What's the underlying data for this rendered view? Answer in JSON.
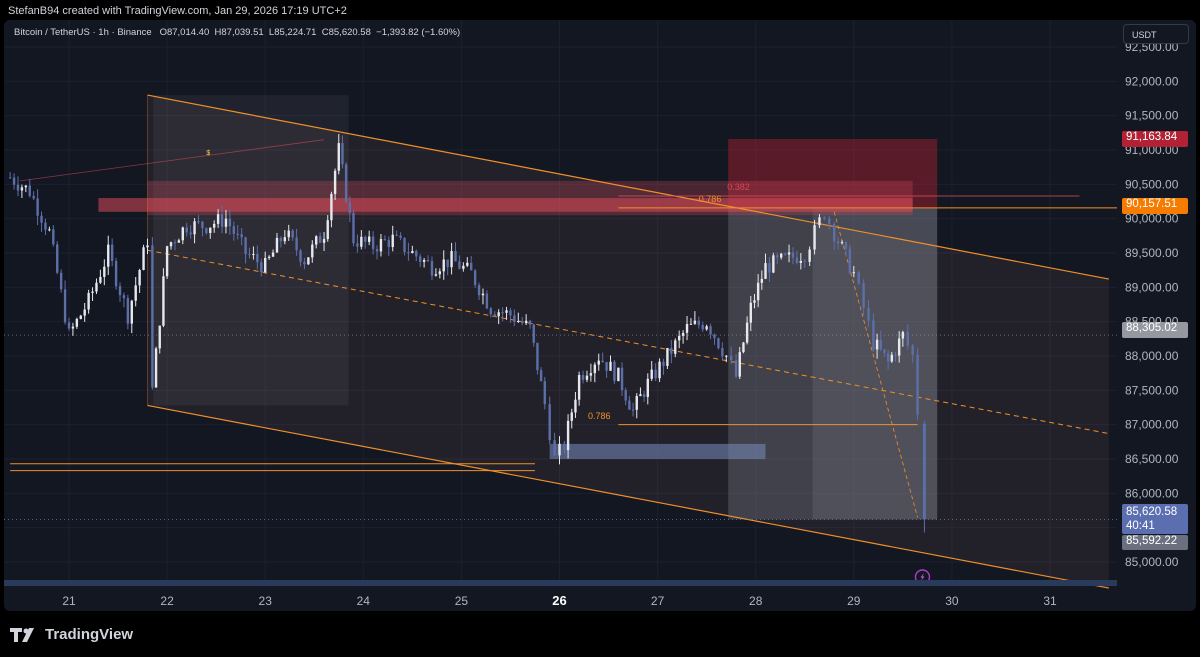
{
  "header": {
    "credit": "StefanB94 created with TradingView.com, Jan 29, 2026 17:19 UTC+2"
  },
  "legend": {
    "symbol": "Bitcoin / TetherUS · 1h · Binance",
    "open": "O87,014.40",
    "high": "H87,039.51",
    "low": "L85,224.71",
    "close": "C85,620.58",
    "change": "−1,393.82 (−1.60%)"
  },
  "currency": "USDT",
  "price_tags": {
    "red": "91,163.84",
    "orange": "90,157.51",
    "gray": "88,305.02",
    "blue_price": "85,620.58",
    "blue_countdown": "40:41",
    "low": "85,592.22"
  },
  "annotations": {
    "fib_top_a": "0.382",
    "fib_top_b": "0.786",
    "fib_bottom": "0.786",
    "dollar": "$"
  },
  "footer": {
    "brand": "TradingView"
  },
  "colors": {
    "background": "#131722",
    "up_candle": "#e6e8ee",
    "down_candle": "#5c6fa8",
    "channel": "#f0902a",
    "supply_zone": "#d94a5a",
    "stop_zone": "#b22234",
    "target_zone": "#9598a1",
    "tag_red": "#b22234",
    "tag_orange": "#f57c00",
    "tag_gray": "#9598a1",
    "tag_blue": "#5b6fb0",
    "tag_low": "#6b7080"
  },
  "chart_data": {
    "type": "candlestick",
    "title": "Bitcoin / TetherUS · 1h · Binance",
    "xlabel": "",
    "ylabel": "",
    "ylim": [
      84500,
      92700
    ],
    "xlim": [
      20.4,
      31.6
    ],
    "y_ticks": [
      "85,000.00",
      "85,500.00",
      "86,000.00",
      "86,500.00",
      "87,000.00",
      "87,500.00",
      "88,000.00",
      "88,500.00",
      "89,000.00",
      "89,500.00",
      "90,000.00",
      "90,500.00",
      "91,000.00",
      "91,500.00",
      "92,000.00",
      "92,500.00"
    ],
    "x_ticks": [
      "21",
      "22",
      "23",
      "24",
      "25",
      "26",
      "27",
      "28",
      "29",
      "30",
      "31"
    ],
    "x_tick_values": [
      21,
      22,
      23,
      24,
      25,
      26,
      27,
      28,
      29,
      30,
      31
    ],
    "bold_x_tick": "26",
    "close_path": [
      [
        20.4,
        90600
      ],
      [
        20.6,
        90400
      ],
      [
        20.8,
        89800
      ],
      [
        21.0,
        88300
      ],
      [
        21.2,
        88800
      ],
      [
        21.4,
        89500
      ],
      [
        21.6,
        88600
      ],
      [
        21.8,
        89700
      ],
      [
        21.85,
        87500
      ],
      [
        22.0,
        89600
      ],
      [
        22.2,
        89900
      ],
      [
        22.4,
        89900
      ],
      [
        22.6,
        90000
      ],
      [
        22.8,
        89500
      ],
      [
        23.0,
        89300
      ],
      [
        23.2,
        89800
      ],
      [
        23.4,
        89400
      ],
      [
        23.6,
        89800
      ],
      [
        23.75,
        91000
      ],
      [
        23.9,
        89700
      ],
      [
        24.1,
        89600
      ],
      [
        24.3,
        89700
      ],
      [
        24.5,
        89500
      ],
      [
        24.7,
        89300
      ],
      [
        24.9,
        89400
      ],
      [
        25.1,
        89200
      ],
      [
        25.3,
        88700
      ],
      [
        25.5,
        88600
      ],
      [
        25.7,
        88400
      ],
      [
        25.85,
        87300
      ],
      [
        25.95,
        86500
      ],
      [
        26.05,
        86700
      ],
      [
        26.2,
        87700
      ],
      [
        26.4,
        88000
      ],
      [
        26.6,
        87700
      ],
      [
        26.75,
        87200
      ],
      [
        26.9,
        87600
      ],
      [
        27.1,
        88000
      ],
      [
        27.3,
        88400
      ],
      [
        27.5,
        88500
      ],
      [
        27.7,
        88000
      ],
      [
        27.8,
        87700
      ],
      [
        27.95,
        88700
      ],
      [
        28.1,
        89300
      ],
      [
        28.3,
        89400
      ],
      [
        28.5,
        89500
      ],
      [
        28.6,
        89800
      ],
      [
        28.7,
        90100
      ],
      [
        28.8,
        89800
      ],
      [
        29.0,
        89200
      ],
      [
        29.1,
        88700
      ],
      [
        29.2,
        88200
      ],
      [
        29.35,
        87900
      ],
      [
        29.5,
        88300
      ],
      [
        29.6,
        88000
      ],
      [
        29.65,
        87200
      ],
      [
        29.68,
        85620
      ]
    ],
    "last_price": 85620.58,
    "last_low": 85592.22,
    "levels": [
      {
        "name": "stop_top",
        "value": 91163.84
      },
      {
        "name": "entry",
        "value": 90157.51
      },
      {
        "name": "prior_close",
        "value": 88305.02
      },
      {
        "name": "fib_0.786_low",
        "value": 87000
      },
      {
        "name": "support",
        "value": 86430
      }
    ],
    "channel": {
      "upper": [
        [
          21.8,
          91800
        ],
        [
          31.6,
          89120
        ]
      ],
      "lower": [
        [
          21.8,
          87280
        ],
        [
          31.6,
          84620
        ]
      ],
      "mid": [
        [
          21.8,
          89540
        ],
        [
          31.6,
          86870
        ]
      ]
    }
  }
}
